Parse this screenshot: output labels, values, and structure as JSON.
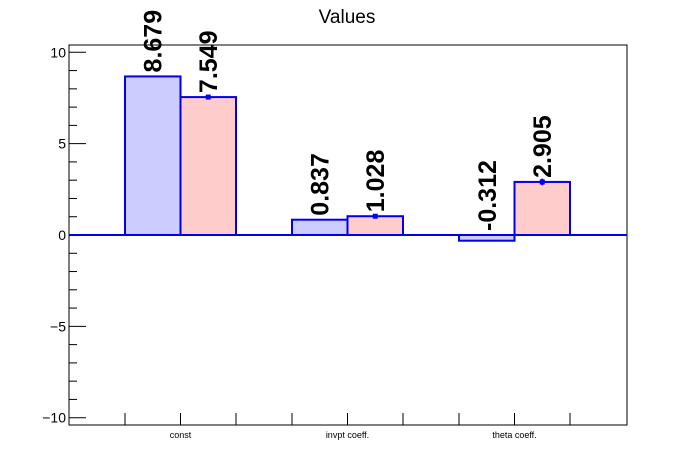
{
  "chart_data": {
    "type": "bar",
    "title": "Values",
    "categories": [
      "const",
      "invpt coeff.",
      "theta coeff."
    ],
    "series": [
      {
        "values": [
          8.679,
          0.837,
          -0.312
        ],
        "labels": [
          "8.679",
          "0.837",
          "-0.312"
        ],
        "errors": [
          0.0,
          0.0,
          0.0
        ]
      },
      {
        "values": [
          7.549,
          1.028,
          2.905
        ],
        "labels": [
          "7.549",
          "1.028",
          "2.905"
        ],
        "errors": [
          0.12,
          0.12,
          0.18
        ]
      }
    ],
    "ylim": [
      -10.4,
      10.4
    ],
    "yticks": [
      -10,
      -5,
      0,
      5,
      10
    ],
    "ytick_labels": [
      "−10",
      "−5",
      "0",
      "5",
      "10"
    ],
    "grid": false,
    "colors": {
      "series_fill": [
        "#ccccff",
        "#ffcccc"
      ],
      "outline": "#0000ee",
      "frame": "#000000"
    }
  }
}
